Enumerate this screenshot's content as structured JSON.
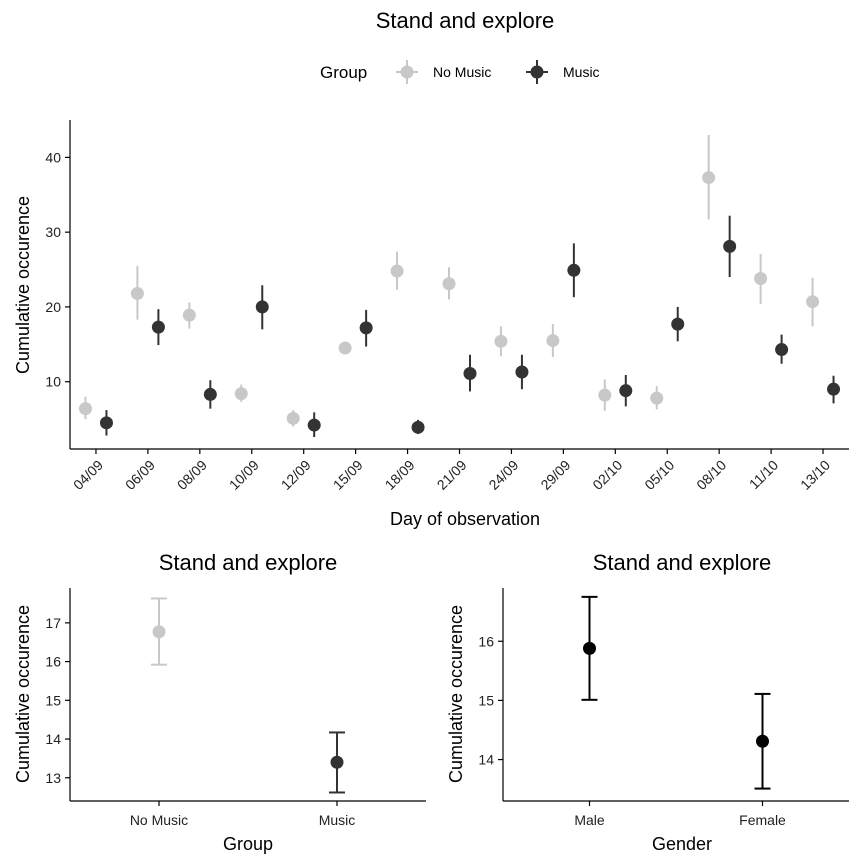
{
  "chart_data": [
    {
      "type": "scatter",
      "title": "Stand and explore",
      "xlabel": "Day of observation",
      "ylabel": "Cumulative occurence",
      "categories": [
        "04/09",
        "06/09",
        "08/09",
        "10/09",
        "12/09",
        "15/09",
        "18/09",
        "21/09",
        "24/09",
        "29/09",
        "02/10",
        "05/10",
        "08/10",
        "11/10",
        "13/10"
      ],
      "yticks": [
        10,
        20,
        30,
        40
      ],
      "ylim": [
        1,
        45
      ],
      "legend": {
        "title": "Group",
        "position": "top"
      },
      "series": [
        {
          "name": "No Music",
          "color": "#c8c8c8",
          "values": [
            6.4,
            21.8,
            18.9,
            8.4,
            5.1,
            14.5,
            24.8,
            23.1,
            15.4,
            15.5,
            8.2,
            7.8,
            37.3,
            23.8,
            20.7
          ],
          "lower": [
            5.0,
            18.3,
            17.1,
            7.3,
            4.0,
            13.7,
            22.3,
            21.0,
            13.4,
            13.3,
            6.1,
            6.3,
            31.7,
            20.4,
            17.4
          ],
          "upper": [
            8.0,
            25.5,
            20.6,
            9.6,
            6.2,
            15.3,
            27.4,
            25.3,
            17.4,
            17.7,
            10.3,
            9.4,
            43.0,
            27.1,
            23.9
          ]
        },
        {
          "name": "Music",
          "color": "#333333",
          "values": [
            4.5,
            17.3,
            8.3,
            20.0,
            4.2,
            17.2,
            3.9,
            11.1,
            11.3,
            24.9,
            8.8,
            17.7,
            28.1,
            14.3,
            9.0
          ],
          "lower": [
            2.8,
            14.9,
            6.4,
            17.0,
            2.6,
            14.7,
            3.0,
            8.7,
            9.0,
            21.3,
            6.7,
            15.4,
            24.0,
            12.4,
            7.1
          ],
          "upper": [
            6.2,
            19.7,
            10.2,
            22.9,
            5.9,
            19.6,
            4.9,
            13.6,
            13.6,
            28.5,
            10.9,
            20.0,
            32.2,
            16.3,
            10.8
          ]
        }
      ]
    },
    {
      "type": "scatter",
      "title": "Stand and explore",
      "xlabel": "Group",
      "ylabel": "Cumulative occurence",
      "categories": [
        "No Music",
        "Music"
      ],
      "yticks": [
        13,
        14,
        15,
        16,
        17
      ],
      "ylim": [
        12.4,
        17.9
      ],
      "points": [
        {
          "category": "No Music",
          "value": 16.77,
          "lower": 15.92,
          "upper": 17.63,
          "color": "#c8c8c8"
        },
        {
          "category": "Music",
          "value": 13.4,
          "lower": 12.62,
          "upper": 14.17,
          "color": "#333333"
        }
      ]
    },
    {
      "type": "scatter",
      "title": "Stand and explore",
      "xlabel": "Gender",
      "ylabel": "Cumulative occurence",
      "categories": [
        "Male",
        "Female"
      ],
      "yticks": [
        14,
        15,
        16
      ],
      "ylim": [
        13.3,
        16.9
      ],
      "points": [
        {
          "category": "Male",
          "value": 15.88,
          "lower": 15.01,
          "upper": 16.75,
          "color": "#000000"
        },
        {
          "category": "Female",
          "value": 14.31,
          "lower": 13.51,
          "upper": 15.11,
          "color": "#000000"
        }
      ]
    }
  ]
}
